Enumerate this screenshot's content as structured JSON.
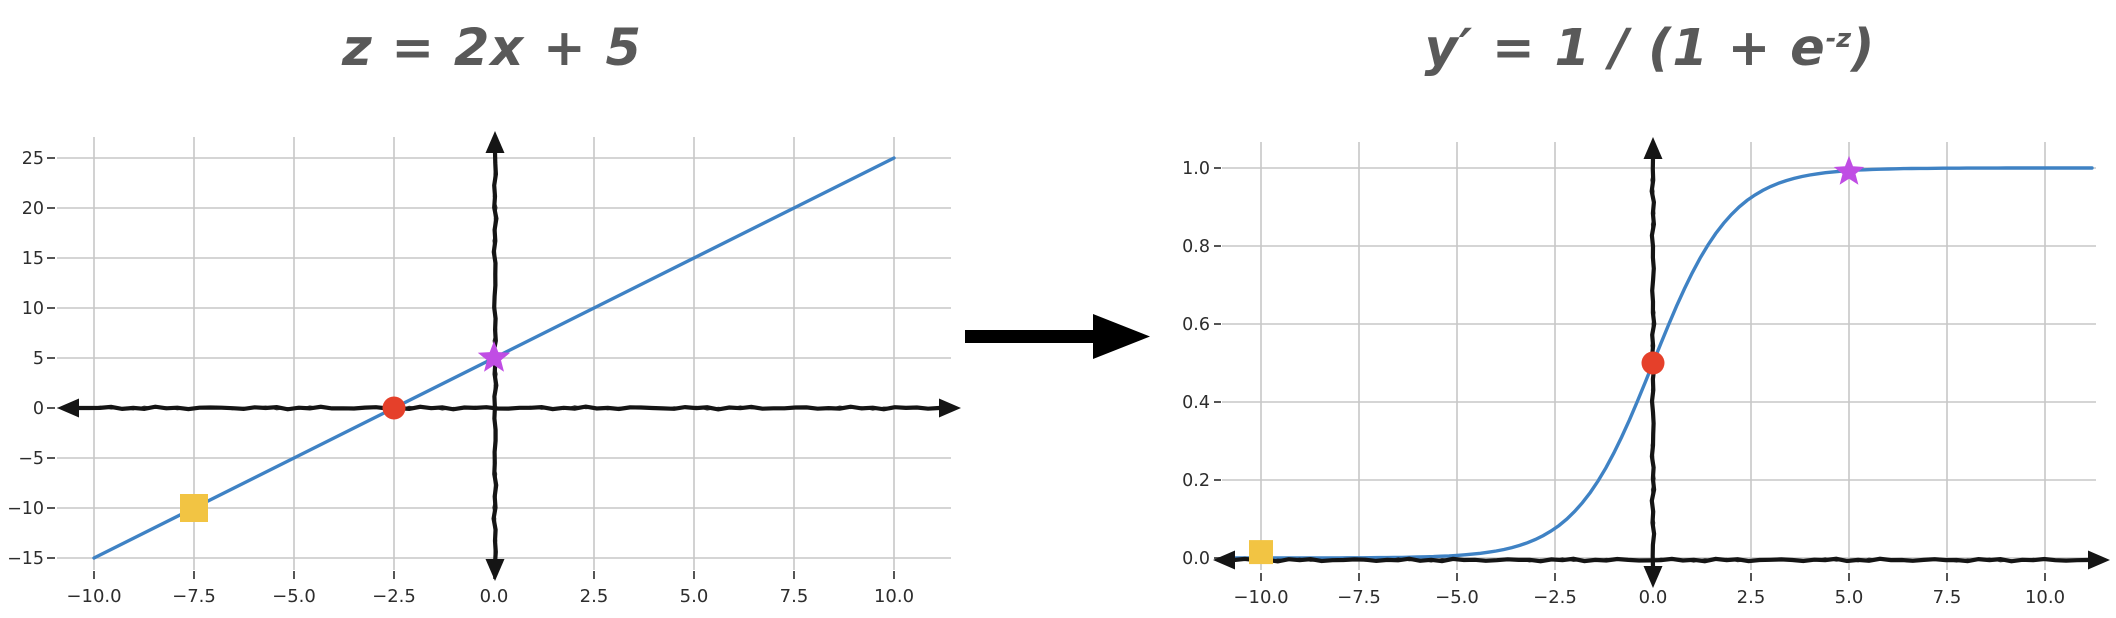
{
  "figure": {
    "background": "#ffffff",
    "description_titles": [
      "z = 2x + 5",
      "y′ = 1 / (1 + e⁻ᶻ)"
    ]
  },
  "titles": {
    "left": "z = 2x + 5",
    "right_prefix": "y′ = 1 / (1 + e",
    "right_sup": "-z",
    "right_suffix": ")"
  },
  "colors": {
    "curve": "#3f82c4",
    "axis": "#151515",
    "grid": "#c7c7c7",
    "tick": "#555555",
    "tick_label": "#2d2d2d",
    "title": "#595959",
    "marker_square": "#f2c443",
    "marker_circle": "#e5402a",
    "marker_star": "#c04de4",
    "transform_arrow": "#000000"
  },
  "transform_arrow": {
    "direction": "right"
  },
  "chart_data": [
    {
      "id": "linear",
      "type": "line",
      "title": "z = 2x + 5",
      "equation": {
        "slope": 2,
        "intercept": 5,
        "formula": "z = 2x + 5"
      },
      "curve": "linear",
      "points": [
        [
          -10,
          -15
        ],
        [
          10,
          25
        ]
      ],
      "x_domain": [
        -10,
        10
      ],
      "xlim": [
        -11.5,
        11.7
      ],
      "ylim": [
        -17,
        27
      ],
      "grid": true,
      "axes_style": "hand-drawn black arrows through origin, both directions",
      "xticks": {
        "values": [
          -10,
          -7.5,
          -5,
          -2.5,
          0,
          2.5,
          5,
          7.5,
          10
        ],
        "labels": [
          "−10.0",
          "−7.5",
          "−5.0",
          "−2.5",
          "0.0",
          "2.5",
          "5.0",
          "7.5",
          "10.0"
        ]
      },
      "yticks": {
        "values": [
          -15,
          -10,
          -5,
          0,
          5,
          10,
          15,
          20,
          25
        ],
        "labels": [
          "−15",
          "−10",
          "−5",
          "0",
          "5",
          "10",
          "15",
          "20",
          "25"
        ]
      },
      "markers": [
        {
          "shape": "square",
          "x": -7.5,
          "y": -10,
          "size": 28
        },
        {
          "shape": "circle",
          "x": -2.5,
          "y": 0,
          "size": 23
        },
        {
          "shape": "star",
          "x": 0,
          "y": 5,
          "size": 34
        }
      ]
    },
    {
      "id": "sigmoid",
      "type": "line",
      "title": "y′ = 1 / (1 + e⁻ᶻ)",
      "equation": {
        "formula": "y′ = 1 / (1 + exp(−z))"
      },
      "curve": "sigmoid",
      "x_domain": [
        -10.8,
        11.2
      ],
      "xlim": [
        -11.5,
        11.7
      ],
      "ylim": [
        -0.06,
        1.08
      ],
      "grid": true,
      "axes_style": "hand-drawn black arrows through origin, both directions",
      "xticks": {
        "values": [
          -10,
          -7.5,
          -5,
          -2.5,
          0,
          2.5,
          5,
          7.5,
          10
        ],
        "labels": [
          "−10.0",
          "−7.5",
          "−5.0",
          "−2.5",
          "0.0",
          "2.5",
          "5.0",
          "7.5",
          "10.0"
        ]
      },
      "yticks": {
        "values": [
          0,
          0.2,
          0.4,
          0.6,
          0.8,
          1.0
        ],
        "labels": [
          "0.0",
          "0.2",
          "0.4",
          "0.6",
          "0.8",
          "1.0"
        ]
      },
      "markers": [
        {
          "shape": "square",
          "x": -10,
          "y": 0.015,
          "size": 24
        },
        {
          "shape": "circle",
          "x": 0,
          "y": 0.5,
          "size": 23
        },
        {
          "shape": "star",
          "x": 5,
          "y": 0.99,
          "size": 32
        }
      ]
    }
  ]
}
